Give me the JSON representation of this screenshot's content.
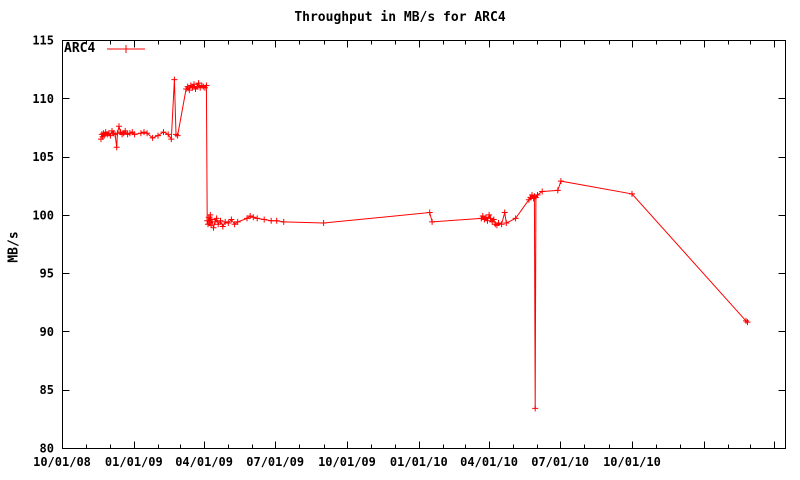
{
  "title": "Throughput in MB/s for ARC4",
  "colors": {
    "series": "#ff0000",
    "axis": "#000000",
    "text": "#000000",
    "background": "#ffffff"
  },
  "legend": {
    "entry": "ARC4"
  },
  "chart_data": {
    "type": "line",
    "title": "Throughput in MB/s for ARC4",
    "xlabel": "",
    "ylabel": "MB/s",
    "ylim": [
      80,
      115
    ],
    "yticks": [
      80,
      85,
      90,
      95,
      100,
      105,
      110,
      115
    ],
    "x_range": [
      "2008-10-01",
      "2011-04-15"
    ],
    "x_major_ticks": [
      {
        "date": "2008-10-01",
        "label": "10/01/08"
      },
      {
        "date": "2009-01-01",
        "label": "01/01/09"
      },
      {
        "date": "2009-04-01",
        "label": "04/01/09"
      },
      {
        "date": "2009-07-01",
        "label": "07/01/09"
      },
      {
        "date": "2009-10-01",
        "label": "10/01/09"
      },
      {
        "date": "2010-01-01",
        "label": "01/01/10"
      },
      {
        "date": "2010-04-01",
        "label": "04/01/10"
      },
      {
        "date": "2010-07-01",
        "label": "07/01/10"
      },
      {
        "date": "2010-10-01",
        "label": "10/01/10"
      }
    ],
    "x_minor_tick_interval": "1 month",
    "grid": false,
    "legend_position": "top-left-inside",
    "marker": "plus",
    "series": [
      {
        "name": "ARC4",
        "color": "#ff0000",
        "points": [
          [
            "2008-11-20",
            106.5
          ],
          [
            "2008-11-21",
            106.9
          ],
          [
            "2008-11-22",
            106.7
          ],
          [
            "2008-11-23",
            107.0
          ],
          [
            "2008-11-24",
            106.8
          ],
          [
            "2008-11-26",
            107.1
          ],
          [
            "2008-11-28",
            106.9
          ],
          [
            "2008-11-30",
            107.0
          ],
          [
            "2008-12-02",
            106.8
          ],
          [
            "2008-12-04",
            107.2
          ],
          [
            "2008-12-06",
            107.0
          ],
          [
            "2008-12-08",
            106.9
          ],
          [
            "2008-12-10",
            105.8
          ],
          [
            "2008-12-11",
            107.0
          ],
          [
            "2008-12-13",
            107.6
          ],
          [
            "2008-12-15",
            107.1
          ],
          [
            "2008-12-17",
            106.9
          ],
          [
            "2008-12-19",
            107.0
          ],
          [
            "2008-12-21",
            107.2
          ],
          [
            "2008-12-24",
            106.9
          ],
          [
            "2008-12-27",
            107.0
          ],
          [
            "2008-12-30",
            107.1
          ],
          [
            "2009-01-02",
            106.9
          ],
          [
            "2009-01-10",
            107.0
          ],
          [
            "2009-01-14",
            107.1
          ],
          [
            "2009-01-18",
            107.0
          ],
          [
            "2009-01-25",
            106.6
          ],
          [
            "2009-02-01",
            106.8
          ],
          [
            "2009-02-08",
            107.1
          ],
          [
            "2009-02-14",
            106.9
          ],
          [
            "2009-02-18",
            106.5
          ],
          [
            "2009-02-22",
            111.6
          ],
          [
            "2009-02-24",
            106.9
          ],
          [
            "2009-02-26",
            106.8
          ],
          [
            "2009-03-09",
            110.8
          ],
          [
            "2009-03-11",
            111.0
          ],
          [
            "2009-03-13",
            110.7
          ],
          [
            "2009-03-15",
            111.1
          ],
          [
            "2009-03-17",
            110.9
          ],
          [
            "2009-03-19",
            111.2
          ],
          [
            "2009-03-21",
            110.8
          ],
          [
            "2009-03-23",
            111.0
          ],
          [
            "2009-03-25",
            111.3
          ],
          [
            "2009-03-27",
            110.9
          ],
          [
            "2009-03-29",
            111.1
          ],
          [
            "2009-03-31",
            111.0
          ],
          [
            "2009-04-02",
            110.9
          ],
          [
            "2009-04-04",
            111.1
          ],
          [
            "2009-04-05",
            99.5
          ],
          [
            "2009-04-06",
            99.2
          ],
          [
            "2009-04-07",
            99.8
          ],
          [
            "2009-04-08",
            99.3
          ],
          [
            "2009-04-09",
            100.0
          ],
          [
            "2009-04-10",
            99.1
          ],
          [
            "2009-04-11",
            99.6
          ],
          [
            "2009-04-13",
            98.9
          ],
          [
            "2009-04-15",
            99.4
          ],
          [
            "2009-04-17",
            99.7
          ],
          [
            "2009-04-19",
            99.2
          ],
          [
            "2009-04-22",
            99.5
          ],
          [
            "2009-04-25",
            99.0
          ],
          [
            "2009-04-28",
            99.4
          ],
          [
            "2009-05-02",
            99.3
          ],
          [
            "2009-05-06",
            99.6
          ],
          [
            "2009-05-10",
            99.2
          ],
          [
            "2009-05-14",
            99.4
          ],
          [
            "2009-05-26",
            99.7
          ],
          [
            "2009-05-30",
            99.9
          ],
          [
            "2009-06-03",
            99.8
          ],
          [
            "2009-06-08",
            99.7
          ],
          [
            "2009-06-17",
            99.6
          ],
          [
            "2009-06-26",
            99.5
          ],
          [
            "2009-07-03",
            99.5
          ],
          [
            "2009-07-12",
            99.4
          ],
          [
            "2009-09-01",
            99.3
          ],
          [
            "2010-01-15",
            100.2
          ],
          [
            "2010-01-18",
            99.4
          ],
          [
            "2010-03-22",
            99.7
          ],
          [
            "2010-03-24",
            99.9
          ],
          [
            "2010-03-26",
            99.6
          ],
          [
            "2010-03-28",
            99.8
          ],
          [
            "2010-03-30",
            99.5
          ],
          [
            "2010-04-01",
            100.0
          ],
          [
            "2010-04-03",
            99.7
          ],
          [
            "2010-04-05",
            99.4
          ],
          [
            "2010-04-07",
            99.6
          ],
          [
            "2010-04-09",
            99.2
          ],
          [
            "2010-04-11",
            99.1
          ],
          [
            "2010-04-13",
            99.3
          ],
          [
            "2010-04-17",
            99.2
          ],
          [
            "2010-04-21",
            100.2
          ],
          [
            "2010-04-23",
            99.3
          ],
          [
            "2010-05-05",
            99.7
          ],
          [
            "2010-05-22",
            101.3
          ],
          [
            "2010-05-24",
            101.5
          ],
          [
            "2010-05-26",
            101.7
          ],
          [
            "2010-05-28",
            101.4
          ],
          [
            "2010-05-29",
            101.6
          ],
          [
            "2010-05-30",
            83.4
          ],
          [
            "2010-05-31",
            101.5
          ],
          [
            "2010-06-02",
            101.7
          ],
          [
            "2010-06-08",
            102.0
          ],
          [
            "2010-06-28",
            102.1
          ],
          [
            "2010-07-02",
            102.9
          ],
          [
            "2010-10-01",
            101.8
          ],
          [
            "2011-02-24",
            90.9
          ],
          [
            "2011-02-26",
            90.8
          ]
        ]
      }
    ]
  }
}
